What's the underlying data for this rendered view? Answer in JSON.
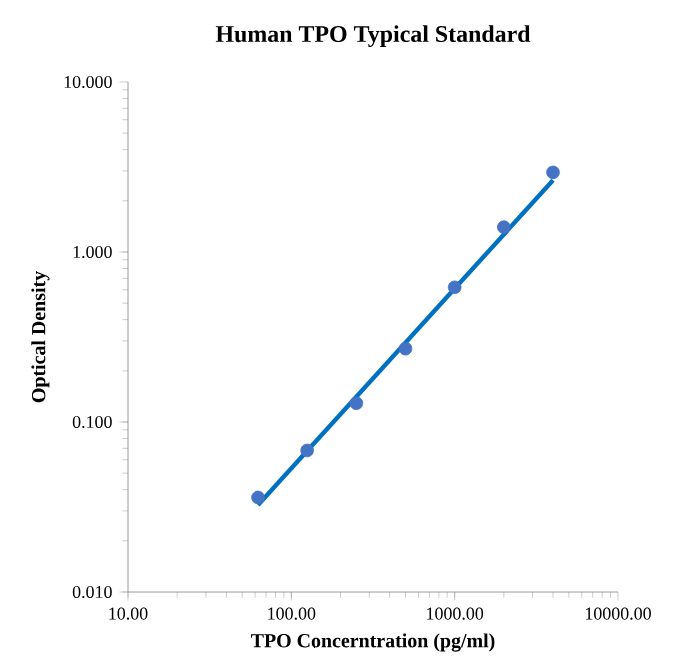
{
  "chart_data": {
    "type": "scatter",
    "title": "Human TPO Typical Standard",
    "xlabel": "TPO Concerntration (pg/ml)",
    "ylabel": "Optical Density",
    "log": "xy",
    "x": [
      62.5,
      125,
      250,
      500,
      1000,
      2000,
      4000
    ],
    "series": [
      {
        "color": "#4472c4",
        "marker": "circle",
        "values": [
          0.036,
          0.068,
          0.129,
          0.27,
          0.62,
          1.4,
          2.94
        ]
      },
      {
        "type": "line",
        "color": "#0070c0",
        "marker": "none",
        "x": [
          62.5,
          4000
        ],
        "values": [
          0.0325,
          2.64
        ]
      }
    ],
    "xlim": [
      10,
      10000
    ],
    "ylim": [
      0.01,
      10
    ],
    "xticks": [
      {
        "value": 10,
        "label": "10.00"
      },
      {
        "value": 100,
        "label": "100.00"
      },
      {
        "value": 1000,
        "label": "1000.00"
      },
      {
        "value": 10000,
        "label": "10000.00"
      }
    ],
    "yticks": [
      {
        "value": 0.01,
        "label": "0.010"
      },
      {
        "value": 0.1,
        "label": "0.100"
      },
      {
        "value": 1,
        "label": "1.000"
      },
      {
        "value": 10,
        "label": "10.000"
      }
    ]
  }
}
